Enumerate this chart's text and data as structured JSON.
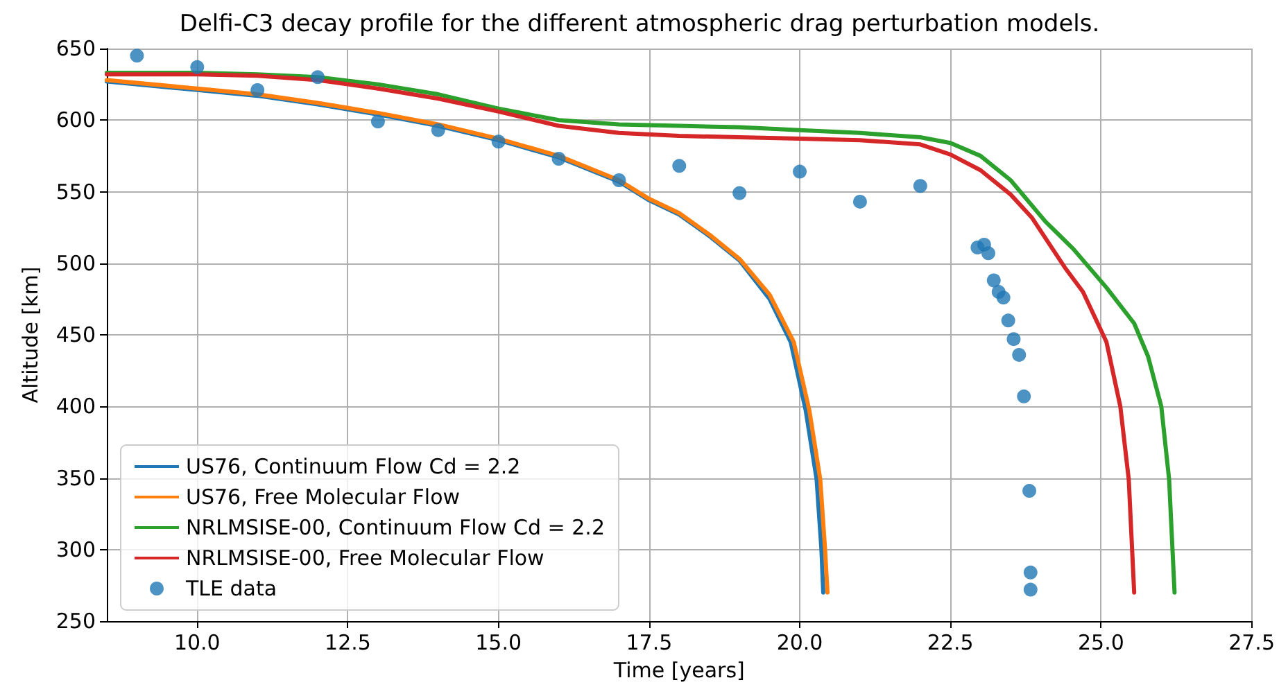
{
  "chart_data": {
    "type": "line",
    "title": "Delfi-C3 decay profile for the different atmospheric drag perturbation models.",
    "xlabel": "Time [years]",
    "ylabel": "Altitude [km]",
    "xlim": [
      8.5,
      27.5
    ],
    "xticks": [
      {
        "value": 10,
        "label": "10.0"
      },
      {
        "value": 12.5,
        "label": "12.5"
      },
      {
        "value": 15,
        "label": "15.0"
      },
      {
        "value": 17.5,
        "label": "17.5"
      },
      {
        "value": 20,
        "label": "20.0"
      },
      {
        "value": 22.5,
        "label": "22.5"
      },
      {
        "value": 25,
        "label": "25.0"
      },
      {
        "value": 27.5,
        "label": "27.5"
      }
    ],
    "ylim": [
      250,
      650
    ],
    "yticks": [
      250,
      300,
      350,
      400,
      450,
      500,
      550,
      600,
      650
    ],
    "grid": true,
    "legend": "bottom left",
    "marker": "none",
    "line_style": "solid",
    "series": [
      {
        "name": "US76, Continuum Flow Cd = 2.2",
        "color": "#1f77b4",
        "x": [
          8.5,
          10,
          11,
          12,
          13,
          14,
          15,
          16,
          17,
          17.5,
          18,
          18.5,
          19,
          19.5,
          19.85,
          20.1,
          20.28,
          20.36,
          20.39
        ],
        "values": [
          627,
          621,
          617,
          611,
          604,
          596,
          586,
          574,
          557,
          544,
          534,
          519,
          502,
          475,
          445,
          397,
          349,
          300,
          270
        ]
      },
      {
        "name": "US76, Free Molecular Flow",
        "color": "#ff7f0e",
        "x": [
          8.5,
          10,
          11,
          12,
          13,
          14,
          15,
          16,
          17,
          17.5,
          18,
          18.5,
          19,
          19.5,
          19.9,
          20.16,
          20.34,
          20.42,
          20.46
        ],
        "values": [
          628,
          622,
          618,
          612,
          605,
          597,
          587,
          575,
          558,
          545,
          535,
          520,
          503,
          478,
          445,
          397,
          349,
          300,
          270
        ]
      },
      {
        "name": "NRLMSISE-00, Continuum Flow Cd = 2.2",
        "color": "#2ca02c",
        "x": [
          8.5,
          10,
          11,
          12,
          13,
          14,
          15,
          16,
          17,
          18,
          19,
          20,
          21,
          22,
          22.5,
          23,
          23.5,
          24.08,
          24.54,
          25.09,
          25.55,
          25.78,
          26.0,
          26.13,
          26.22
        ],
        "values": [
          633,
          633,
          632,
          630,
          625,
          618,
          608,
          600,
          597,
          596,
          595,
          593,
          591,
          588,
          584,
          575,
          558,
          529,
          510,
          483,
          458,
          435,
          400,
          349,
          270
        ]
      },
      {
        "name": "NRLMSISE-00, Free Molecular Flow",
        "color": "#d62728",
        "x": [
          8.5,
          10,
          11,
          12,
          13,
          14,
          15,
          16,
          17,
          18,
          19,
          20,
          21,
          22,
          22.5,
          23,
          23.5,
          23.85,
          24.4,
          24.7,
          25.09,
          25.32,
          25.46,
          25.55
        ],
        "values": [
          632,
          632,
          631,
          628,
          622,
          615,
          606,
          596,
          591,
          589,
          588,
          587,
          586,
          583,
          576,
          565,
          548,
          532,
          497,
          480,
          445,
          400,
          349,
          270
        ]
      },
      {
        "name": "TLE data",
        "type": "scatter",
        "marker": "circle",
        "color": "#1f77b4",
        "x": [
          9,
          10,
          11,
          12,
          13,
          14,
          15,
          16,
          17,
          18,
          19,
          20,
          21,
          22,
          22.95,
          23.06,
          23.13,
          23.22,
          23.3,
          23.38,
          23.46,
          23.55,
          23.64,
          23.72,
          23.81,
          23.83,
          23.83
        ],
        "values": [
          645,
          637,
          621,
          630,
          599,
          593,
          585,
          573,
          558,
          568,
          549,
          564,
          543,
          554,
          511,
          513,
          507,
          488,
          480,
          476,
          460,
          447,
          436,
          407,
          341,
          284,
          272
        ]
      }
    ]
  }
}
